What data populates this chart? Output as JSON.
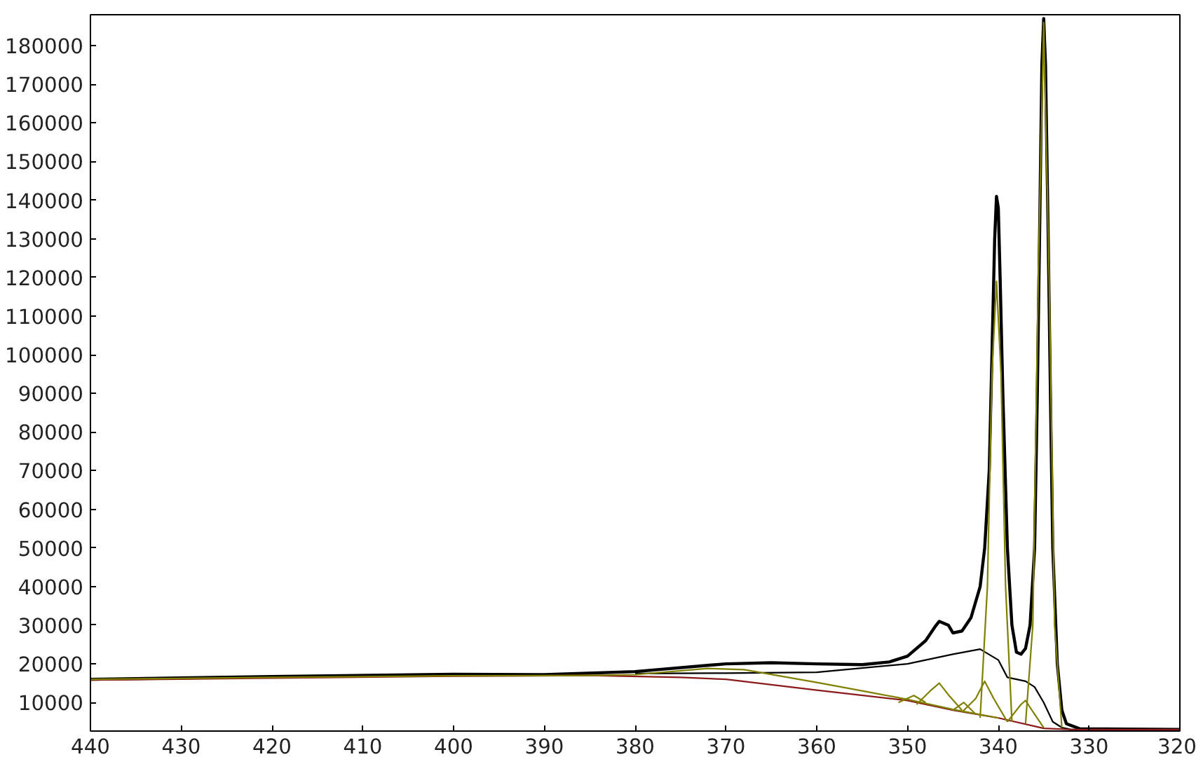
{
  "chart_data": {
    "type": "line",
    "xlim": [
      440,
      320
    ],
    "ylim": [
      2600,
      188000
    ],
    "xticks": [
      440,
      430,
      420,
      410,
      400,
      390,
      380,
      370,
      360,
      350,
      340,
      330,
      320
    ],
    "yticks": [
      10000,
      20000,
      30000,
      40000,
      50000,
      60000,
      70000,
      80000,
      90000,
      100000,
      110000,
      120000,
      130000,
      140000,
      150000,
      160000,
      170000,
      180000
    ],
    "grid": false,
    "series": [
      {
        "color": "#000000",
        "x": [
          440,
          420,
          400,
          390,
          380,
          370,
          365,
          360,
          355,
          352,
          350,
          348,
          347,
          346.5,
          345.5,
          345,
          344,
          343,
          342,
          341.5,
          341,
          340.7,
          340.4,
          340.2,
          340,
          339.8,
          339.5,
          339,
          338.5,
          338,
          337.5,
          337,
          336.5,
          336,
          335.7,
          335.4,
          335.2,
          335,
          334.8,
          334.5,
          334.2,
          334,
          333.5,
          333,
          332.5,
          331,
          320
        ],
        "values": [
          16000,
          16700,
          17300,
          17200,
          18000,
          20000,
          20300,
          20000,
          19800,
          20500,
          22000,
          26000,
          29500,
          31000,
          30000,
          28000,
          28500,
          32000,
          40000,
          50000,
          70000,
          100000,
          130000,
          141000,
          138000,
          120000,
          90000,
          50000,
          30000,
          23000,
          22500,
          24000,
          30000,
          50000,
          90000,
          140000,
          175000,
          187000,
          175000,
          130000,
          80000,
          50000,
          20000,
          8000,
          4500,
          3200,
          3000
        ]
      },
      {
        "color": "#000000",
        "x": [
          380,
          370,
          360,
          350,
          345,
          342,
          340,
          339,
          337,
          336,
          335,
          334,
          333,
          332,
          320
        ],
        "values": [
          17500,
          17600,
          17800,
          20000,
          22500,
          23800,
          21000,
          16500,
          15500,
          14000,
          10000,
          5000,
          3500,
          3000,
          3000
        ]
      },
      {
        "color": "#8b1a1a",
        "x": [
          440,
          420,
          400,
          385,
          375,
          370,
          360,
          350,
          345,
          340,
          335,
          332,
          320
        ],
        "values": [
          15800,
          16300,
          16800,
          17000,
          16500,
          16000,
          13200,
          10500,
          8000,
          6000,
          3300,
          3000,
          3000
        ]
      },
      {
        "color": "#808000",
        "x": [
          440,
          420,
          400,
          385,
          380,
          372,
          368,
          360,
          355,
          350,
          345,
          340
        ],
        "values": [
          16000,
          16500,
          16900,
          17000,
          17200,
          18800,
          18500,
          15200,
          13000,
          10800,
          8200,
          6000
        ]
      },
      {
        "color": "#808000",
        "x": [
          337,
          336.2,
          335.6,
          335,
          334.4,
          333.8,
          333
        ],
        "values": [
          4500,
          30000,
          120000,
          186000,
          120000,
          30000,
          3500
        ]
      },
      {
        "color": "#808000",
        "x": [
          342,
          341.2,
          340.7,
          340.2,
          339.7,
          339.2,
          338.5
        ],
        "values": [
          6000,
          40000,
          95000,
          119000,
          95000,
          40000,
          5000
        ]
      },
      {
        "color": "#808000",
        "x": [
          344,
          342.5,
          341.5,
          340.5,
          339
        ],
        "values": [
          7500,
          11000,
          15500,
          11000,
          5000
        ]
      },
      {
        "color": "#808000",
        "x": [
          349,
          347.5,
          346.5,
          345.5,
          344
        ],
        "values": [
          9500,
          13000,
          15000,
          12000,
          8000
        ]
      },
      {
        "color": "#808000",
        "x": [
          351,
          349.3,
          348
        ],
        "values": [
          10000,
          11800,
          10000
        ]
      },
      {
        "color": "#808000",
        "x": [
          345,
          343.8,
          342.5
        ],
        "values": [
          8000,
          10000,
          7000
        ]
      },
      {
        "color": "#808000",
        "x": [
          339,
          337.5,
          337,
          336.3,
          335
        ],
        "values": [
          5000,
          9500,
          10500,
          8000,
          3500
        ]
      }
    ]
  }
}
